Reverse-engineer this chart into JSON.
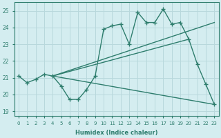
{
  "x": [
    0,
    1,
    2,
    3,
    4,
    5,
    6,
    7,
    8,
    9,
    10,
    11,
    12,
    13,
    14,
    15,
    16,
    17,
    18,
    19,
    20,
    21,
    22,
    23
  ],
  "line_zigzag": [
    21.1,
    20.7,
    20.9,
    21.2,
    21.1,
    20.5,
    19.7,
    19.7,
    20.3,
    21.1,
    23.9,
    24.1,
    24.2,
    23.0,
    24.9,
    24.3,
    24.3,
    25.1,
    24.2,
    24.3,
    23.3,
    21.8,
    20.6,
    19.4
  ],
  "line_up_steep": [
    [
      4,
      21.1
    ],
    [
      23,
      24.3
    ]
  ],
  "line_up_mid": [
    [
      4,
      21.1
    ],
    [
      20,
      23.3
    ]
  ],
  "line_down": [
    [
      4,
      21.1
    ],
    [
      23,
      19.4
    ]
  ],
  "color": "#2e7d6d",
  "bg_color": "#d4edf0",
  "grid_color": "#b8d8dc",
  "ylabel_ticks": [
    19,
    20,
    21,
    22,
    23,
    24,
    25
  ],
  "xlabel": "Humidex (Indice chaleur)",
  "ylim": [
    18.7,
    25.5
  ],
  "xlim": [
    -0.5,
    23.5
  ]
}
